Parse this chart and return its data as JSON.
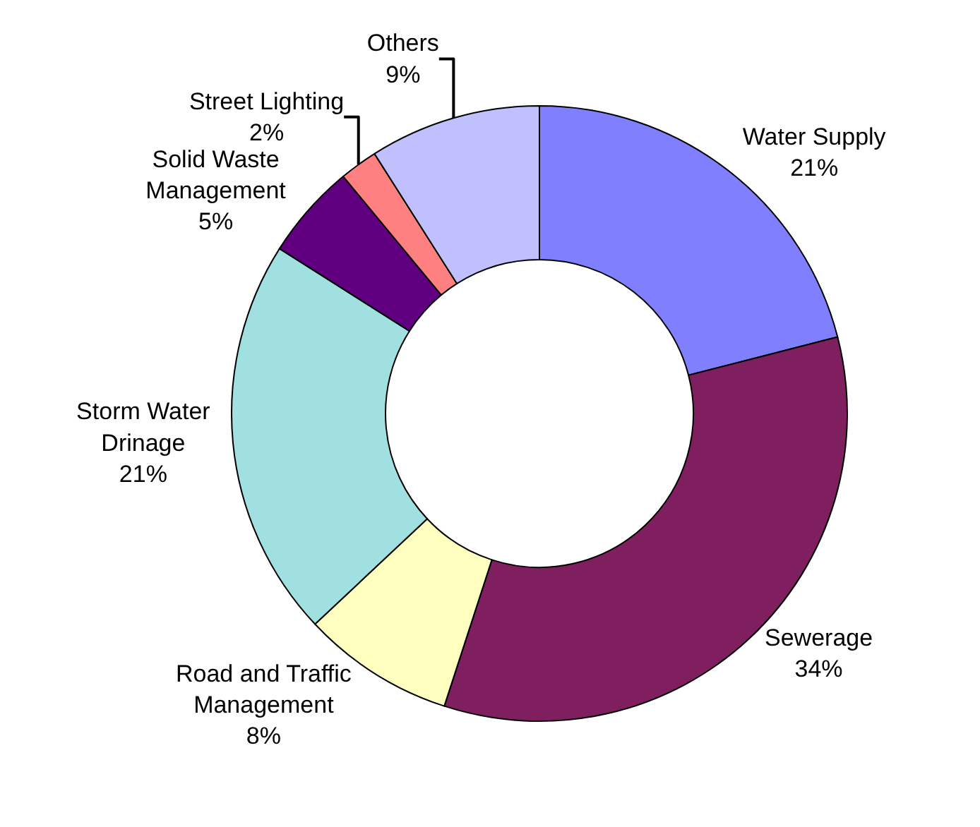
{
  "chart_data": {
    "type": "donut",
    "categories": [
      "Water Supply",
      "Sewerage",
      "Road and Traffic Management",
      "Storm Water Drinage",
      "Solid Waste Management",
      "Street Lighting",
      "Others"
    ],
    "values": [
      21,
      34,
      8,
      21,
      5,
      2,
      9
    ],
    "value_labels": [
      "21%",
      "34%",
      "8%",
      "21%",
      "5%",
      "2%",
      "9%"
    ],
    "colors": [
      "#8080ff",
      "#7f1f5f",
      "#ffffc0",
      "#a0e0e0",
      "#600080",
      "#ff8080",
      "#c0c0ff"
    ],
    "legend": false
  }
}
